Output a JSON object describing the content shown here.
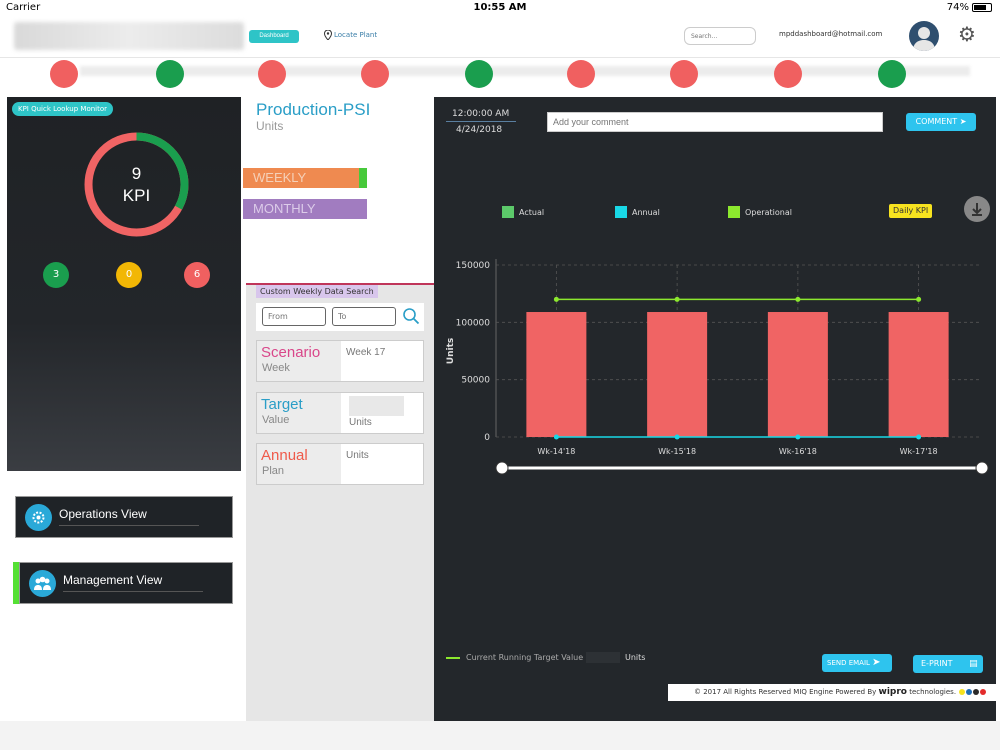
{
  "status_bar": {
    "carrier": "Carrier",
    "time": "10:55 AM",
    "battery": "74%",
    "battery_level": 0.74
  },
  "header": {
    "dashboard_button": "Dashboard",
    "locate_plant": "Locate Plant",
    "search_placeholder": "Search...",
    "email": "mpddashboard@hotmail.com"
  },
  "status_strip": {
    "dot_colors": [
      "#f06060",
      "#1a9e4e",
      "#f06060",
      "#f06060",
      "#1a9e4e",
      "#f06060",
      "#f06060",
      "#f06060",
      "#1a9e4e"
    ]
  },
  "kpi_panel": {
    "tag": "KPI Quick Lookup Monitor",
    "count": "9",
    "label": "KPI",
    "donut_green_fraction": 0.33,
    "counters": [
      {
        "value": "3",
        "color": "#1a9e4e"
      },
      {
        "value": "0",
        "color": "#f2b705"
      },
      {
        "value": "6",
        "color": "#f06060"
      }
    ]
  },
  "views": {
    "operations": "Operations View",
    "management": "Management View"
  },
  "production": {
    "title": "Production-PSI",
    "units": "Units",
    "tab_weekly": "WEEKLY",
    "tab_monthly": "MONTHLY",
    "custom_search": "Custom Weekly Data Search",
    "from_placeholder": "From",
    "to_placeholder": "To",
    "scenario": {
      "title": "Scenario",
      "sub": "Week",
      "value": "Week 17",
      "color": "#d9478a"
    },
    "target": {
      "title": "Target",
      "sub": "Value",
      "value": "Units",
      "color": "#2a9ec7"
    },
    "annual": {
      "title": "Annual",
      "sub": "Plan",
      "value": "Units",
      "color": "#ef5a4a"
    }
  },
  "detail": {
    "time": "12:00:00 AM",
    "date": "4/24/2018",
    "comment_placeholder": "Add your comment",
    "comment_button": "COMMENT",
    "daily_kpi": "Daily KPI",
    "running_target_label": "Current Running Target Value :",
    "running_target_units": "Units",
    "send_email": "SEND EMAIL",
    "eprint": "E-PRINT",
    "footer_text": "© 2017 All Rights Reserved MIQ Engine Powered By",
    "footer_brand": "wipro",
    "footer_suffix": "technologies."
  },
  "chart_data": {
    "type": "bar",
    "categories": [
      "Wk-14'18",
      "Wk-15'18",
      "Wk-16'18",
      "Wk-17'18"
    ],
    "series": [
      {
        "name": "Actual",
        "type": "bar",
        "color": "#f06464",
        "values": [
          109000,
          109000,
          109000,
          109000
        ]
      },
      {
        "name": "Annual",
        "type": "line",
        "color": "#19d8e6",
        "values": [
          0,
          0,
          0,
          0
        ]
      },
      {
        "name": "Operational",
        "type": "line",
        "color": "#8ce82e",
        "values": [
          120000,
          120000,
          120000,
          120000
        ]
      }
    ],
    "legend": [
      {
        "label": "Actual",
        "color": "#5cc96a"
      },
      {
        "label": "Annual",
        "color": "#19d8e6"
      },
      {
        "label": "Operational",
        "color": "#8ce82e"
      }
    ],
    "ylabel": "Units",
    "ylim": [
      0,
      150000
    ],
    "yticks": [
      "0",
      "50000",
      "100000",
      "150000"
    ],
    "ytick_values": [
      0,
      50000,
      100000,
      150000
    ],
    "grid": "dashed"
  }
}
